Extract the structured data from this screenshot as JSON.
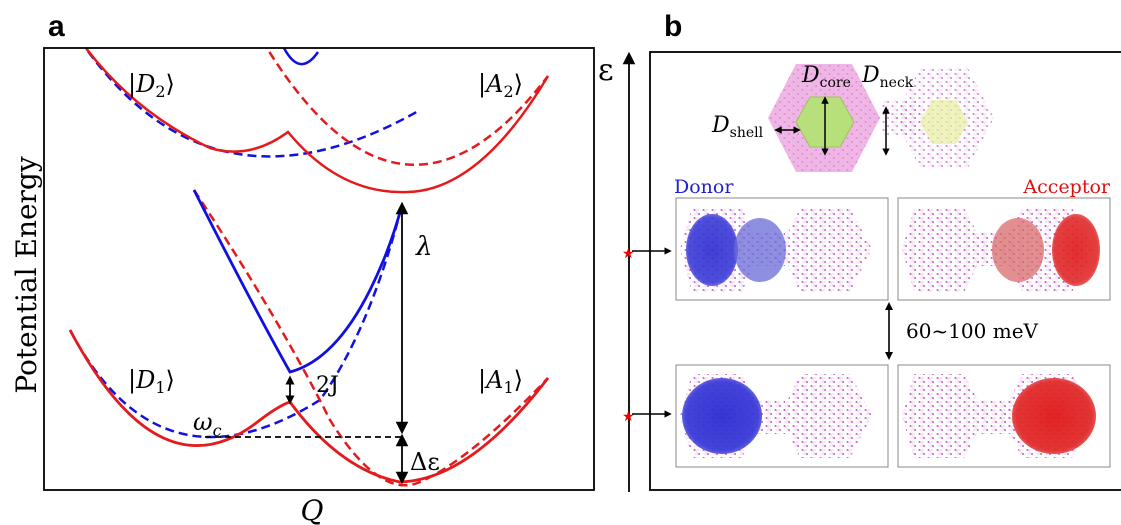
{
  "panel_a": {
    "letter": "a",
    "ylabel": "Potential Energy",
    "xlabel": "Q",
    "state_D2": {
      "name": "D",
      "sub": "2"
    },
    "state_A2": {
      "name": "A",
      "sub": "2"
    },
    "state_D1": {
      "name": "D",
      "sub": "1"
    },
    "state_A1": {
      "name": "A",
      "sub": "1"
    },
    "lambda": "λ",
    "coupling": "2J",
    "omega": {
      "name": "ω",
      "sub": "c"
    },
    "delta_eps": "Δε"
  },
  "panel_b": {
    "letter": "b",
    "energy_axis": "ε",
    "d_core": {
      "name": "D",
      "sub": "core"
    },
    "d_neck": {
      "name": "D",
      "sub": "neck"
    },
    "d_shell": {
      "name": "D",
      "sub": "shell"
    },
    "donor_label": "Donor",
    "acceptor_label": "Acceptor",
    "gap_label": "60~100 meV"
  },
  "colors": {
    "diabatic": "#e41a1c",
    "adiabatic": "#1010e0",
    "donor": "#2222cc",
    "acceptor": "#dd1111",
    "lattice": "#c050c0",
    "core_green": "#b8e07a",
    "shell_pink": "#e890d8"
  }
}
